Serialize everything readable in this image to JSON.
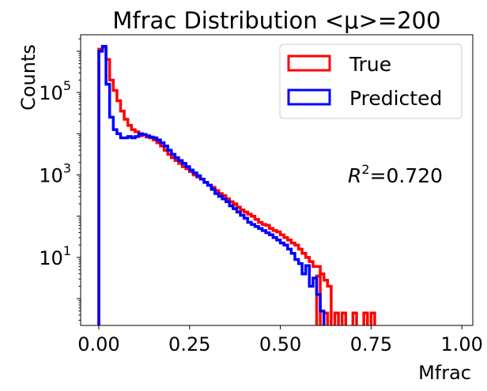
{
  "chart_data": {
    "type": "histogram-step",
    "title": "Mfrac Distribution <μ>=200",
    "xlabel": "Mfrac",
    "ylabel": "Counts",
    "xlim": [
      -0.05,
      1.03
    ],
    "ylim_log10": [
      -0.65,
      6.4
    ],
    "yscale": "log",
    "xticks": [
      0.0,
      0.25,
      0.5,
      0.75,
      1.0
    ],
    "xtick_labels": [
      "0.00",
      "0.25",
      "0.50",
      "0.75",
      "1.00"
    ],
    "yticks_log10": [
      1,
      3,
      5
    ],
    "ytick_labels": [
      {
        "base": "10",
        "exp": "1"
      },
      {
        "base": "10",
        "exp": "3"
      },
      {
        "base": "10",
        "exp": "5"
      }
    ],
    "bin_width": 0.01,
    "annotation": {
      "prefix": "R",
      "sup": "2",
      "suffix": "=0.720"
    },
    "legend": {
      "position": "upper right"
    },
    "series": [
      {
        "name": "True",
        "color": "#ff0000",
        "bins_start": 0.0,
        "log10_counts": [
          6.05,
          6.1,
          5.8,
          5.3,
          5.05,
          4.8,
          4.55,
          4.35,
          4.2,
          4.1,
          4.05,
          3.95,
          3.98,
          3.92,
          3.9,
          3.85,
          3.78,
          3.7,
          3.6,
          3.5,
          3.42,
          3.35,
          3.28,
          3.2,
          3.15,
          3.08,
          3.0,
          2.95,
          2.9,
          2.82,
          2.75,
          2.7,
          2.62,
          2.55,
          2.5,
          2.42,
          2.35,
          2.3,
          2.22,
          2.15,
          2.1,
          2.05,
          2.0,
          1.92,
          1.85,
          1.8,
          1.78,
          1.7,
          1.65,
          1.62,
          1.55,
          1.48,
          1.42,
          1.35,
          1.3,
          1.2,
          1.1,
          1.0,
          0.9,
          0.78,
          0.78,
          0.6,
          0.45,
          0.3,
          null,
          null,
          null,
          null,
          null,
          null,
          null,
          null,
          null,
          null,
          null,
          null,
          null,
          null,
          null,
          null
        ],
        "sparse_bins": [
          {
            "x": 0.6,
            "log10": 0.55
          },
          {
            "x": 0.62,
            "log10": -0.35
          },
          {
            "x": 0.65,
            "log10": -0.35
          },
          {
            "x": 0.67,
            "log10": -0.35
          },
          {
            "x": 0.7,
            "log10": -0.35
          },
          {
            "x": 0.73,
            "log10": -0.35
          },
          {
            "x": 0.75,
            "log10": -0.35
          }
        ]
      },
      {
        "name": "Predicted",
        "color": "#0000ff",
        "bins_start": 0.0,
        "log10_counts": [
          6.0,
          6.12,
          5.2,
          4.4,
          4.1,
          4.0,
          3.9,
          3.9,
          3.93,
          3.9,
          3.93,
          4.0,
          3.98,
          3.95,
          3.92,
          3.9,
          3.85,
          3.78,
          3.7,
          3.6,
          3.5,
          3.42,
          3.35,
          3.28,
          3.2,
          3.12,
          3.05,
          2.98,
          2.9,
          2.82,
          2.75,
          2.65,
          2.55,
          2.48,
          2.42,
          2.35,
          2.25,
          2.18,
          2.1,
          2.02,
          1.95,
          1.85,
          1.8,
          1.75,
          1.7,
          1.65,
          1.6,
          1.55,
          1.48,
          1.42,
          1.35,
          1.3,
          1.2,
          1.1,
          0.95,
          0.85,
          0.6,
          0.8,
          0.3,
          0.5,
          0.1,
          -0.3,
          null,
          null,
          null,
          null,
          null,
          null,
          null,
          null,
          null,
          null,
          null,
          null,
          null,
          null,
          null,
          null,
          null,
          null
        ]
      }
    ]
  }
}
